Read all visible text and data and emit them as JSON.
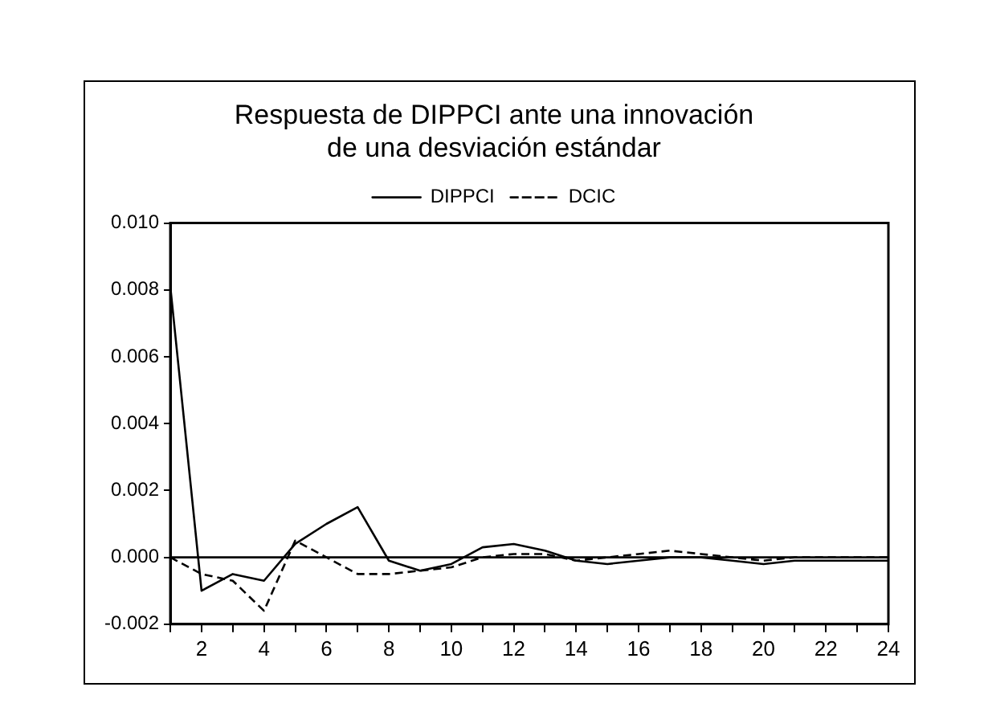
{
  "chart_data": {
    "type": "line",
    "title": [
      "Respuesta de DIPPCI ante una innovación",
      "de una desviación estándar"
    ],
    "x": [
      1,
      2,
      3,
      4,
      5,
      6,
      7,
      8,
      9,
      10,
      11,
      12,
      13,
      14,
      15,
      16,
      17,
      18,
      19,
      20,
      21,
      22,
      23,
      24
    ],
    "series": [
      {
        "name": "DIPPCI",
        "color": "#000000",
        "line_style": "solid",
        "values": [
          0.0081,
          -0.001,
          -0.0005,
          -0.0007,
          0.0004,
          0.001,
          0.0015,
          -0.0001,
          -0.0004,
          -0.0002,
          0.0003,
          0.0004,
          0.0002,
          -0.0001,
          -0.0002,
          -0.0001,
          0.0,
          0.0,
          -0.0001,
          -0.0002,
          -0.0001,
          -0.0001,
          -0.0001,
          -0.0001
        ]
      },
      {
        "name": "DCIC",
        "color": "#000000",
        "line_style": "dashed",
        "values": [
          0.0,
          -0.0005,
          -0.0007,
          -0.0016,
          0.0005,
          0.0,
          -0.0005,
          -0.0005,
          -0.0004,
          -0.0003,
          0.0,
          0.0001,
          0.0001,
          -0.0001,
          0.0,
          0.0001,
          0.0002,
          0.0001,
          0.0,
          -0.0001,
          0.0,
          0.0,
          0.0,
          0.0
        ]
      }
    ],
    "xlim": [
      1,
      24
    ],
    "xticks": [
      {
        "value": 1,
        "label": null
      },
      2,
      {
        "value": 3,
        "label": null
      },
      4,
      {
        "value": 5,
        "label": null
      },
      6,
      {
        "value": 7,
        "label": null
      },
      8,
      {
        "value": 9,
        "label": null
      },
      10,
      {
        "value": 11,
        "label": null
      },
      12,
      {
        "value": 13,
        "label": null
      },
      14,
      {
        "value": 15,
        "label": null
      },
      16,
      {
        "value": 17,
        "label": null
      },
      18,
      {
        "value": 19,
        "label": null
      },
      20,
      {
        "value": 21,
        "label": null
      },
      22,
      {
        "value": 23,
        "label": null
      },
      24
    ],
    "ylim": [
      -0.002,
      0.01
    ],
    "yticks": [
      {
        "value": -0.002,
        "label": "-0.002"
      },
      {
        "value": 0,
        "label": "0.000"
      },
      {
        "value": 0.002,
        "label": "0.002"
      },
      {
        "value": 0.004,
        "label": "0.004"
      },
      {
        "value": 0.006,
        "label": "0.006"
      },
      {
        "value": 0.008,
        "label": "0.008"
      },
      {
        "value": 0.01,
        "label": "0.010"
      }
    ],
    "ref_lines": [
      {
        "axis": "y",
        "value": 0,
        "color": "#000000"
      }
    ],
    "grid": false,
    "legend": "top",
    "marker": "none"
  }
}
